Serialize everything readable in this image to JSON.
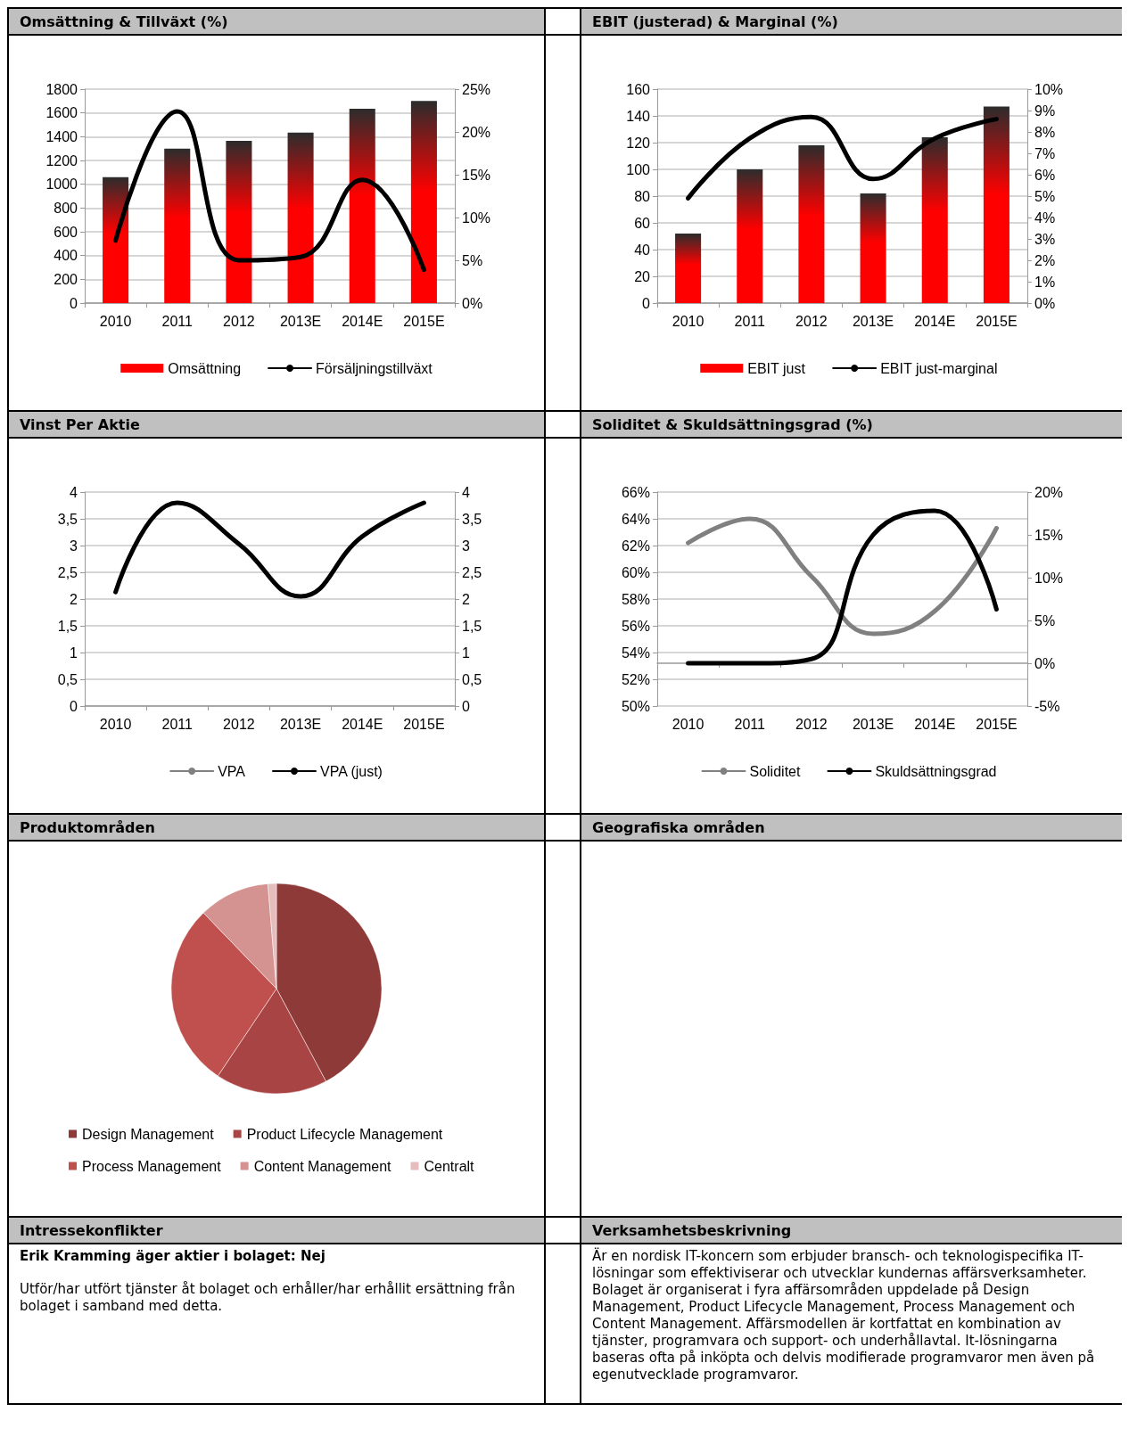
{
  "chart_data": [
    {
      "type": "bar",
      "title": "Omsättning & Tillväxt (%)",
      "categories": [
        "2010",
        "2011",
        "2012",
        "2013E",
        "2014E",
        "2015E"
      ],
      "series": [
        {
          "name": "Omsättning",
          "color": "#ff0000",
          "values": [
            1060,
            1300,
            1365,
            1435,
            1635,
            1700
          ]
        },
        {
          "name": "Försäljningstillväxt",
          "type": "line",
          "axis": "y2",
          "color": "#000000",
          "values": [
            7.3,
            22.4,
            5.0,
            5.4,
            14.4,
            3.9
          ]
        }
      ],
      "ylim": [
        0,
        1800
      ],
      "yticks": [
        0,
        200,
        400,
        600,
        800,
        1000,
        1200,
        1400,
        1600,
        1800
      ],
      "y2lim": [
        0,
        25
      ],
      "y2ticks": [
        {
          "value": 0,
          "label": "0%"
        },
        {
          "value": 5,
          "label": "5%"
        },
        {
          "value": 10,
          "label": "10%"
        },
        {
          "value": 15,
          "label": "15%"
        },
        {
          "value": 20,
          "label": "20%"
        },
        {
          "value": 25,
          "label": "25%"
        }
      ],
      "grid": "y",
      "legend": "bottom",
      "marker": "none",
      "line_style": "solid"
    },
    {
      "type": "bar",
      "title": "EBIT (justerad) & Marginal (%)",
      "categories": [
        "2010",
        "2011",
        "2012",
        "2013E",
        "2014E",
        "2015E"
      ],
      "series": [
        {
          "name": "EBIT just",
          "color": "#ff0000",
          "values": [
            52,
            100,
            118,
            82,
            124,
            147
          ]
        },
        {
          "name": "EBIT just-marginal",
          "type": "line",
          "axis": "y2",
          "color": "#000000",
          "values": [
            4.9,
            7.7,
            8.7,
            5.8,
            7.7,
            8.6
          ]
        }
      ],
      "ylim": [
        0,
        160
      ],
      "yticks": [
        0,
        20,
        40,
        60,
        80,
        100,
        120,
        140,
        160
      ],
      "y2lim": [
        0,
        10
      ],
      "y2ticks": [
        {
          "value": 0,
          "label": "0%"
        },
        {
          "value": 1,
          "label": "1%"
        },
        {
          "value": 2,
          "label": "2%"
        },
        {
          "value": 3,
          "label": "3%"
        },
        {
          "value": 4,
          "label": "4%"
        },
        {
          "value": 5,
          "label": "5%"
        },
        {
          "value": 6,
          "label": "6%"
        },
        {
          "value": 7,
          "label": "7%"
        },
        {
          "value": 8,
          "label": "8%"
        },
        {
          "value": 9,
          "label": "9%"
        },
        {
          "value": 10,
          "label": "10%"
        }
      ],
      "grid": "y",
      "legend": "bottom",
      "marker": "none",
      "line_style": "solid"
    },
    {
      "type": "line",
      "title": "Vinst Per Aktie",
      "categories": [
        "2010",
        "2011",
        "2012",
        "2013E",
        "2014E",
        "2015E"
      ],
      "series": [
        {
          "name": "VPA",
          "color": "#808080",
          "values": [
            null,
            null,
            null,
            null,
            null,
            null
          ]
        },
        {
          "name": "VPA (just)",
          "color": "#000000",
          "values": [
            2.13,
            3.8,
            3.03,
            2.05,
            3.17,
            3.8
          ]
        }
      ],
      "ylim": [
        0,
        4
      ],
      "yticks": [
        0,
        {
          "value": 0.5,
          "label": "0,5"
        },
        1,
        {
          "value": 1.5,
          "label": "1,5"
        },
        2,
        {
          "value": 2.5,
          "label": "2,5"
        },
        3,
        {
          "value": 3.5,
          "label": "3,5"
        },
        4
      ],
      "y2lim": [
        0,
        4
      ],
      "y2ticks": [
        0,
        {
          "value": 0.5,
          "label": "0,5"
        },
        1,
        {
          "value": 1.5,
          "label": "1,5"
        },
        2,
        {
          "value": 2.5,
          "label": "2,5"
        },
        3,
        {
          "value": 3.5,
          "label": "3,5"
        },
        4
      ],
      "grid": "y",
      "legend": "bottom",
      "marker": "none",
      "line_style": "solid"
    },
    {
      "type": "line",
      "title": "Soliditet & Skuldsättningsgrad (%)",
      "categories": [
        "2010",
        "2011",
        "2012",
        "2013E",
        "2014E",
        "2015E"
      ],
      "series": [
        {
          "name": "Soliditet",
          "color": "#808080",
          "values": [
            62.2,
            64.0,
            59.7,
            55.4,
            57.1,
            63.3
          ]
        },
        {
          "name": "Skuldsättningsgrad",
          "axis": "y2",
          "color": "#000000",
          "values": [
            0,
            0,
            0.5,
            15.0,
            17.8,
            6.3
          ]
        }
      ],
      "ylim": [
        50,
        66
      ],
      "yticks": [
        {
          "value": 50,
          "label": "50%"
        },
        {
          "value": 52,
          "label": "52%"
        },
        {
          "value": 54,
          "label": "54%"
        },
        {
          "value": 56,
          "label": "56%"
        },
        {
          "value": 58,
          "label": "58%"
        },
        {
          "value": 60,
          "label": "60%"
        },
        {
          "value": 62,
          "label": "62%"
        },
        {
          "value": 64,
          "label": "64%"
        },
        {
          "value": 66,
          "label": "66%"
        }
      ],
      "y2lim": [
        -5,
        20
      ],
      "y2ticks": [
        {
          "value": -5,
          "label": "-5%"
        },
        {
          "value": 0,
          "label": "0%"
        },
        {
          "value": 5,
          "label": "5%"
        },
        {
          "value": 10,
          "label": "10%"
        },
        {
          "value": 15,
          "label": "15%"
        },
        {
          "value": 20,
          "label": "20%"
        }
      ],
      "grid": "y",
      "legend": "bottom",
      "marker": "none",
      "line_style": "solid"
    },
    {
      "type": "pie",
      "title": "Produktområden",
      "categories": [
        "Design Management",
        "Product Lifecycle Management",
        "Process Management",
        "Content Management",
        "Centralt"
      ],
      "values": [
        42.2,
        17.2,
        28.4,
        10.9,
        1.3
      ],
      "colors": [
        "#8e3a39",
        "#a84444",
        "#c0504d",
        "#d49290",
        "#e4bdbc"
      ],
      "legend": "bottom"
    },
    {
      "type": "other",
      "title": "Geografiska områden"
    },
    {
      "type": "other",
      "title": "Intressekonflikter",
      "annotations": [
        "Erik Kramming äger aktier i bolaget: Nej",
        "Utför/har utfört tjänster åt bolaget och erhåller/har erhållit ersättning från bolaget i samband med detta."
      ]
    },
    {
      "type": "other",
      "title": "Verksamhetsbeskrivning",
      "annotations": [
        "Är en nordisk IT-koncern som erbjuder bransch- och teknologispecifika IT-lösningar som effektiviserar och utvecklar kundernas affärsverksamheter. Bolaget är organiserat i fyra affärsområden uppdelade på Design Management, Product Lifecycle Management, Process Management och Content Management. Affärsmodellen är kortfattat en kombination av tjänster, programvara och support- och underhållavtal. It-lösningarna baseras ofta på inköpta och delvis modifierade programvaror men även på egenutvecklade programvaror."
      ]
    }
  ]
}
